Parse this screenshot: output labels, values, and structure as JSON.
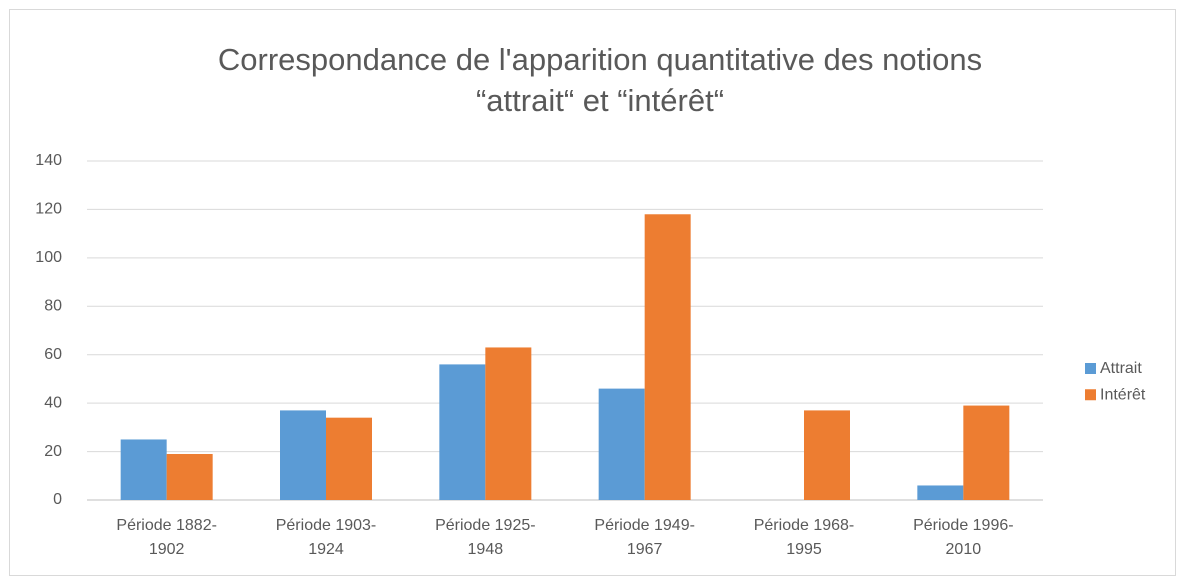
{
  "chart_data": {
    "type": "bar",
    "title": [
      "Correspondance de l'apparition quantitative des notions",
      "“attrait“ et “intérêt“"
    ],
    "categories": [
      "Période 1882-1902",
      "Période 1903-1924",
      "Période 1925-1948",
      "Période 1949-1967",
      "Période 1968-1995",
      "Période 1996-2010"
    ],
    "series": [
      {
        "name": "Attrait",
        "color": "#5b9bd5",
        "values": [
          25,
          37,
          56,
          46,
          0,
          6
        ]
      },
      {
        "name": "Intérêt",
        "color": "#ed7d31",
        "values": [
          19,
          34,
          63,
          118,
          37,
          39
        ]
      }
    ],
    "ylim": [
      0,
      140
    ],
    "yticks": [
      0,
      20,
      40,
      60,
      80,
      100,
      120,
      140
    ],
    "grid": true,
    "legend": "right"
  }
}
